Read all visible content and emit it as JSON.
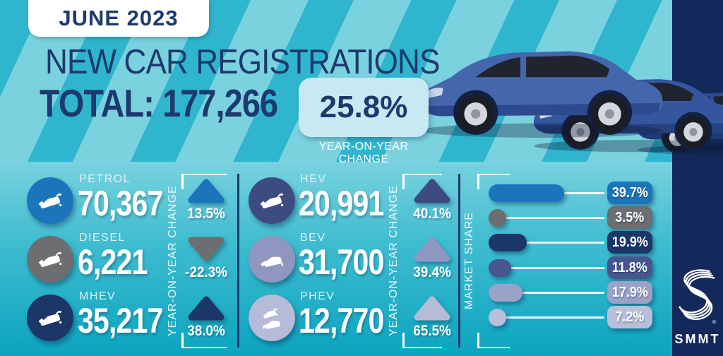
{
  "header": {
    "date_badge": "JUNE 2023",
    "title": "NEW CAR REGISTRATIONS",
    "total_label": "TOTAL:",
    "total_value": "177,266",
    "yoy_value": "25.8%",
    "yoy_caption": "YEAR-ON-YEAR CHANGE"
  },
  "palette": {
    "navy_text": "#1D3A6E",
    "sidebar_navy": "#13295B",
    "stripe_light": "#7BD2DF",
    "stripe_dark": "#2FB6CE",
    "panel_top": "#79D2DF",
    "panel_bottom": "#0BA4BF",
    "yoy_box_bg": "#C6E9F3"
  },
  "fuel_groups": [
    {
      "axis_label": "YEAR-ON-YEAR CHANGE",
      "rows": [
        {
          "label": "PETROL",
          "value": "70,367",
          "yoy": "13.5%",
          "direction": "up",
          "color": "#1B75BC",
          "icon": "fuel-nozzle"
        },
        {
          "label": "DIESEL",
          "value": "6,221",
          "yoy": "-22.3%",
          "direction": "down",
          "color": "#6D6E70",
          "icon": "fuel-nozzle"
        },
        {
          "label": "MHEV",
          "value": "35,217",
          "yoy": "38.0%",
          "direction": "up",
          "color": "#1B3667",
          "icon": "fuel-nozzle"
        }
      ]
    },
    {
      "axis_label": "YEAR-ON-YEAR CHANGE",
      "rows": [
        {
          "label": "HEV",
          "value": "20,991",
          "yoy": "40.1%",
          "direction": "up",
          "color": "#3D4C80",
          "icon": "fuel-nozzle"
        },
        {
          "label": "BEV",
          "value": "31,700",
          "yoy": "39.4%",
          "direction": "up",
          "color": "#8F97C1",
          "icon": "ev-plug"
        },
        {
          "label": "PHEV",
          "value": "12,770",
          "yoy": "65.5%",
          "direction": "up",
          "color": "#B5BBD8",
          "icon": "nozzle-and-plug"
        }
      ]
    }
  ],
  "market_share": {
    "axis_label": "MARKET SHARE",
    "items": [
      {
        "fuel": "PETROL",
        "share": "39.7%",
        "pct": 39.7,
        "color": "#1B75BC"
      },
      {
        "fuel": "DIESEL",
        "share": "3.5%",
        "pct": 3.5,
        "color": "#6D6E70"
      },
      {
        "fuel": "MHEV",
        "share": "19.9%",
        "pct": 19.9,
        "color": "#1B3667"
      },
      {
        "fuel": "HEV",
        "share": "11.8%",
        "pct": 11.8,
        "color": "#47568F"
      },
      {
        "fuel": "BEV",
        "share": "17.9%",
        "pct": 17.9,
        "color": "#9AA2C8"
      },
      {
        "fuel": "PHEV",
        "share": "7.2%",
        "pct": 7.2,
        "color": "#B9BFDB"
      }
    ]
  },
  "branding": {
    "logo_text": "SMMT",
    "registered_mark": "®"
  },
  "chart_data": {
    "type": "bar",
    "title": "NEW CAR REGISTRATIONS — JUNE 2023",
    "total_registrations": 177266,
    "total_yoy_change_pct": 25.8,
    "categories": [
      "PETROL",
      "DIESEL",
      "MHEV",
      "HEV",
      "BEV",
      "PHEV"
    ],
    "series": [
      {
        "name": "Registrations (units)",
        "values": [
          70367,
          6221,
          35217,
          20991,
          31700,
          12770
        ]
      },
      {
        "name": "Year-on-year change (%)",
        "values": [
          13.5,
          -22.3,
          38.0,
          40.1,
          39.4,
          65.5
        ]
      },
      {
        "name": "Market share (%)",
        "values": [
          39.7,
          3.5,
          19.9,
          11.8,
          17.9,
          7.2
        ]
      }
    ],
    "legend_position": "none",
    "grid": false
  }
}
